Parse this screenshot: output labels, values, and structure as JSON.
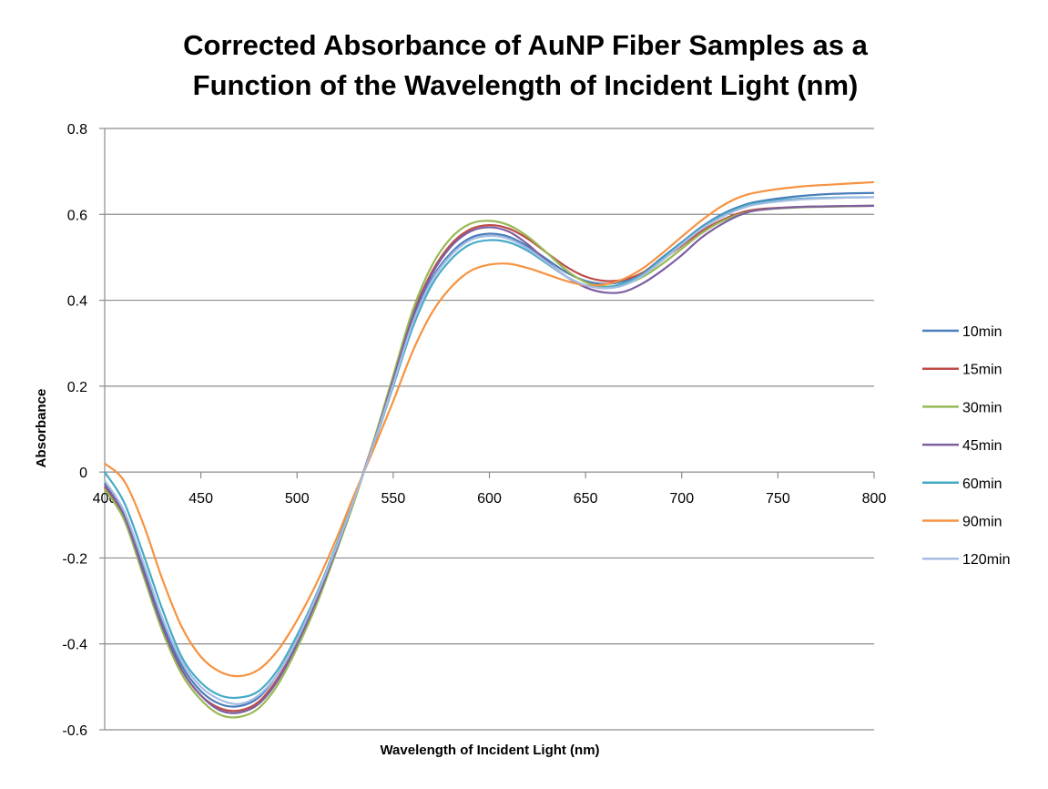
{
  "chart_data": {
    "type": "line",
    "title": [
      "Corrected Absorbance of AuNP Fiber Samples as a",
      "Function of the Wavelength of Incident Light (nm)"
    ],
    "xlabel": "Wavelength of Incident Light (nm)",
    "ylabel": "Absorbance",
    "xlim": [
      400,
      800
    ],
    "ylim": [
      -0.6,
      0.8
    ],
    "xticks": [
      400,
      450,
      500,
      550,
      600,
      650,
      700,
      750,
      800
    ],
    "yticks": [
      -0.6,
      -0.4,
      -0.2,
      0,
      0.2,
      0.4,
      0.6,
      0.8
    ],
    "ytick_labels": [
      "-0.6",
      "-0.4",
      "-0.2",
      "0",
      "0.2",
      "0.4",
      "0.6",
      "0.8"
    ],
    "grid": "horizontal",
    "legend_position": "right",
    "x": [
      400,
      410,
      420,
      430,
      440,
      450,
      460,
      470,
      480,
      490,
      500,
      510,
      520,
      530,
      540,
      550,
      560,
      570,
      580,
      590,
      600,
      610,
      620,
      630,
      640,
      650,
      660,
      670,
      680,
      690,
      700,
      710,
      720,
      730,
      740,
      760,
      780,
      800
    ],
    "series": [
      {
        "name": "10min",
        "color": "#4a7ebb",
        "values": [
          -0.025,
          -0.1,
          -0.22,
          -0.35,
          -0.45,
          -0.51,
          -0.54,
          -0.545,
          -0.525,
          -0.47,
          -0.39,
          -0.29,
          -0.18,
          -0.06,
          0.07,
          0.21,
          0.35,
          0.45,
          0.51,
          0.545,
          0.555,
          0.548,
          0.525,
          0.495,
          0.465,
          0.445,
          0.438,
          0.445,
          0.465,
          0.5,
          0.535,
          0.57,
          0.598,
          0.618,
          0.63,
          0.642,
          0.648,
          0.65
        ]
      },
      {
        "name": "15min",
        "color": "#be4b48",
        "values": [
          -0.035,
          -0.105,
          -0.23,
          -0.36,
          -0.46,
          -0.52,
          -0.55,
          -0.555,
          -0.535,
          -0.48,
          -0.4,
          -0.3,
          -0.185,
          -0.06,
          0.075,
          0.22,
          0.365,
          0.465,
          0.53,
          0.565,
          0.575,
          0.567,
          0.543,
          0.51,
          0.478,
          0.455,
          0.445,
          0.448,
          0.465,
          0.495,
          0.527,
          0.56,
          0.585,
          0.603,
          0.612,
          0.617,
          0.619,
          0.62
        ]
      },
      {
        "name": "30min",
        "color": "#98b954",
        "values": [
          -0.04,
          -0.11,
          -0.24,
          -0.37,
          -0.47,
          -0.53,
          -0.565,
          -0.57,
          -0.55,
          -0.495,
          -0.41,
          -0.31,
          -0.19,
          -0.065,
          0.075,
          0.225,
          0.375,
          0.48,
          0.545,
          0.578,
          0.585,
          0.575,
          0.548,
          0.51,
          0.47,
          0.442,
          0.432,
          0.437,
          0.455,
          0.485,
          0.52,
          0.555,
          0.582,
          0.6,
          0.61,
          0.616,
          0.618,
          0.62
        ]
      },
      {
        "name": "45min",
        "color": "#7d5fa0",
        "values": [
          -0.03,
          -0.1,
          -0.23,
          -0.36,
          -0.46,
          -0.52,
          -0.555,
          -0.56,
          -0.54,
          -0.485,
          -0.4,
          -0.3,
          -0.185,
          -0.06,
          0.07,
          0.215,
          0.36,
          0.46,
          0.525,
          0.56,
          0.57,
          0.56,
          0.53,
          0.49,
          0.455,
          0.43,
          0.418,
          0.42,
          0.44,
          0.47,
          0.505,
          0.545,
          0.575,
          0.598,
          0.61,
          0.617,
          0.619,
          0.62
        ]
      },
      {
        "name": "60min",
        "color": "#46aac5",
        "values": [
          0.0,
          -0.07,
          -0.19,
          -0.32,
          -0.43,
          -0.49,
          -0.52,
          -0.525,
          -0.51,
          -0.46,
          -0.38,
          -0.285,
          -0.175,
          -0.055,
          0.065,
          0.2,
          0.335,
          0.435,
          0.495,
          0.53,
          0.54,
          0.535,
          0.515,
          0.485,
          0.455,
          0.435,
          0.43,
          0.44,
          0.462,
          0.497,
          0.533,
          0.568,
          0.595,
          0.615,
          0.627,
          0.636,
          0.639,
          0.64
        ]
      },
      {
        "name": "90min",
        "color": "#f69240",
        "values": [
          0.02,
          -0.02,
          -0.12,
          -0.25,
          -0.36,
          -0.43,
          -0.465,
          -0.475,
          -0.46,
          -0.415,
          -0.345,
          -0.26,
          -0.16,
          -0.05,
          0.055,
          0.165,
          0.28,
          0.37,
          0.43,
          0.468,
          0.483,
          0.485,
          0.475,
          0.46,
          0.445,
          0.435,
          0.437,
          0.45,
          0.475,
          0.51,
          0.548,
          0.585,
          0.617,
          0.64,
          0.652,
          0.664,
          0.67,
          0.675
        ]
      },
      {
        "name": "120min",
        "color": "#a5bce2",
        "values": [
          -0.02,
          -0.09,
          -0.21,
          -0.34,
          -0.44,
          -0.5,
          -0.53,
          -0.54,
          -0.52,
          -0.47,
          -0.39,
          -0.29,
          -0.18,
          -0.06,
          0.068,
          0.205,
          0.345,
          0.445,
          0.505,
          0.54,
          0.55,
          0.543,
          0.52,
          0.488,
          0.455,
          0.435,
          0.428,
          0.435,
          0.458,
          0.493,
          0.53,
          0.565,
          0.592,
          0.612,
          0.624,
          0.634,
          0.638,
          0.64
        ]
      }
    ]
  }
}
